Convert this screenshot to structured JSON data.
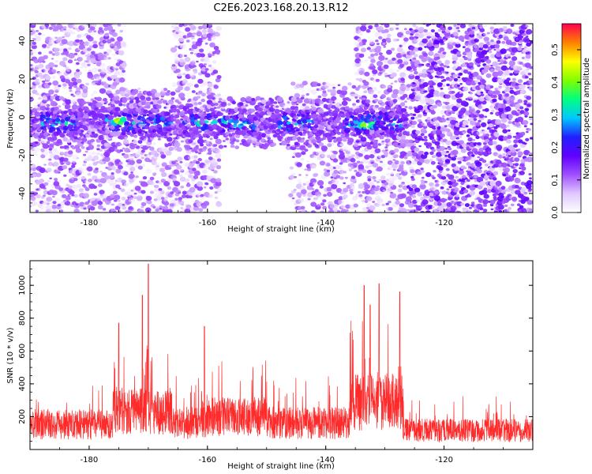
{
  "title": "C2E6.2023.168.20.13.R12",
  "chart_data": [
    {
      "type": "heatmap",
      "xlabel": "Height of straight line (km)",
      "ylabel": "Frequency (Hz)",
      "xlim": [
        -190,
        -105
      ],
      "ylim": [
        -50,
        49
      ],
      "xticks": [
        -180,
        -160,
        -140,
        -120
      ],
      "yticks": [
        -40,
        -20,
        0,
        20,
        40
      ],
      "colorbar": {
        "label": "Normalized spectral amplitude",
        "range": [
          0,
          0.58
        ],
        "ticks": [
          "0.0",
          "0.1",
          "0.2",
          "0.3",
          "0.4",
          "0.5"
        ],
        "colors": [
          "#ffffff",
          "#e0c8ff",
          "#a050ff",
          "#6000ff",
          "#2020ff",
          "#00c8ff",
          "#00ff80",
          "#80ff00",
          "#ffff00",
          "#ff8000",
          "#ff0050"
        ]
      },
      "band_center_hz": -3,
      "bright_segments_km": [
        [
          -188,
          -182
        ],
        [
          -177,
          -166
        ],
        [
          -164,
          -152
        ],
        [
          -148,
          -142
        ],
        [
          -137,
          -127
        ]
      ],
      "peaks": [
        {
          "x": -175,
          "y": -2,
          "value": 0.5
        },
        {
          "x": -133,
          "y": -4,
          "value": 0.55
        }
      ]
    },
    {
      "type": "line",
      "xlabel": "Height of straight line (km)",
      "ylabel": "SNR (10 * v/v)",
      "xlim": [
        -190,
        -105
      ],
      "ylim": [
        0,
        1150
      ],
      "xticks": [
        -180,
        -160,
        -140,
        -120
      ],
      "yticks": [
        200,
        400,
        600,
        800,
        1000
      ],
      "series_color": "#ff2a2a",
      "baseline_snr": 150,
      "segment_levels": [
        {
          "x": [
            -190,
            -176
          ],
          "level": 170
        },
        {
          "x": [
            -176,
            -166
          ],
          "level": 260
        },
        {
          "x": [
            -166,
            -160
          ],
          "level": 180
        },
        {
          "x": [
            -160,
            -150
          ],
          "level": 220
        },
        {
          "x": [
            -150,
            -136
          ],
          "level": 180
        },
        {
          "x": [
            -136,
            -127
          ],
          "level": 320
        },
        {
          "x": [
            -127,
            -105
          ],
          "level": 130
        }
      ],
      "spikes": [
        {
          "x": -175,
          "y": 770
        },
        {
          "x": -171,
          "y": 940
        },
        {
          "x": -170,
          "y": 1130
        },
        {
          "x": -160.5,
          "y": 750
        },
        {
          "x": -133.5,
          "y": 1000
        },
        {
          "x": -132.5,
          "y": 880
        },
        {
          "x": -131,
          "y": 1010
        },
        {
          "x": -127.5,
          "y": 960
        }
      ]
    }
  ]
}
